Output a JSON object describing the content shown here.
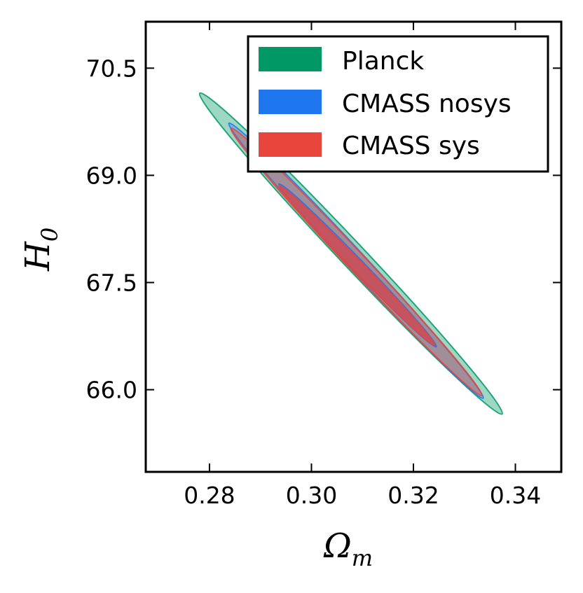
{
  "chart_data": {
    "type": "contour",
    "title": "",
    "xlabel": {
      "main": "Ω",
      "sub": "m"
    },
    "ylabel": {
      "main": "H",
      "sub": "0"
    },
    "xlim": [
      0.2675,
      0.349
    ],
    "ylim": [
      64.85,
      71.15
    ],
    "xticks": [
      0.28,
      0.3,
      0.32,
      0.34
    ],
    "xtick_labels": [
      "0.28",
      "0.30",
      "0.32",
      "0.34"
    ],
    "yticks": [
      66.0,
      67.5,
      69.0,
      70.5
    ],
    "ytick_labels": [
      "66.0",
      "67.5",
      "69.0",
      "70.5"
    ],
    "grid": false,
    "legend_position": "top-right",
    "series": [
      {
        "name": "Planck",
        "color": "#009966",
        "contours": [
          {
            "level": "outer",
            "endpoints": [
              [
                0.2781,
                70.15
              ],
              [
                0.3374,
                65.66
              ]
            ],
            "halfwidth_omega": 0.0024,
            "opacity": 0.38
          }
        ]
      },
      {
        "name": "CMASS nosys",
        "color": "#1f77f0",
        "contours": [
          {
            "level": "outer",
            "endpoints": [
              [
                0.2838,
                69.73
              ],
              [
                0.3337,
                65.88
              ]
            ],
            "halfwidth_omega": 0.0018,
            "opacity": 0.3
          },
          {
            "level": "inner",
            "endpoints": [
              [
                0.2936,
                68.88
              ],
              [
                0.3245,
                66.6
              ]
            ],
            "halfwidth_omega": 0.0012,
            "opacity": 0.55
          }
        ]
      },
      {
        "name": "CMASS sys",
        "color": "#e8453c",
        "contours": [
          {
            "level": "outer",
            "endpoints": [
              [
                0.2842,
                69.66
              ],
              [
                0.3334,
                65.92
              ]
            ],
            "halfwidth_omega": 0.0018,
            "opacity": 0.38
          },
          {
            "level": "inner",
            "endpoints": [
              [
                0.2936,
                68.86
              ],
              [
                0.3242,
                66.62
              ]
            ],
            "halfwidth_omega": 0.0011,
            "opacity": 0.75
          }
        ]
      }
    ]
  }
}
